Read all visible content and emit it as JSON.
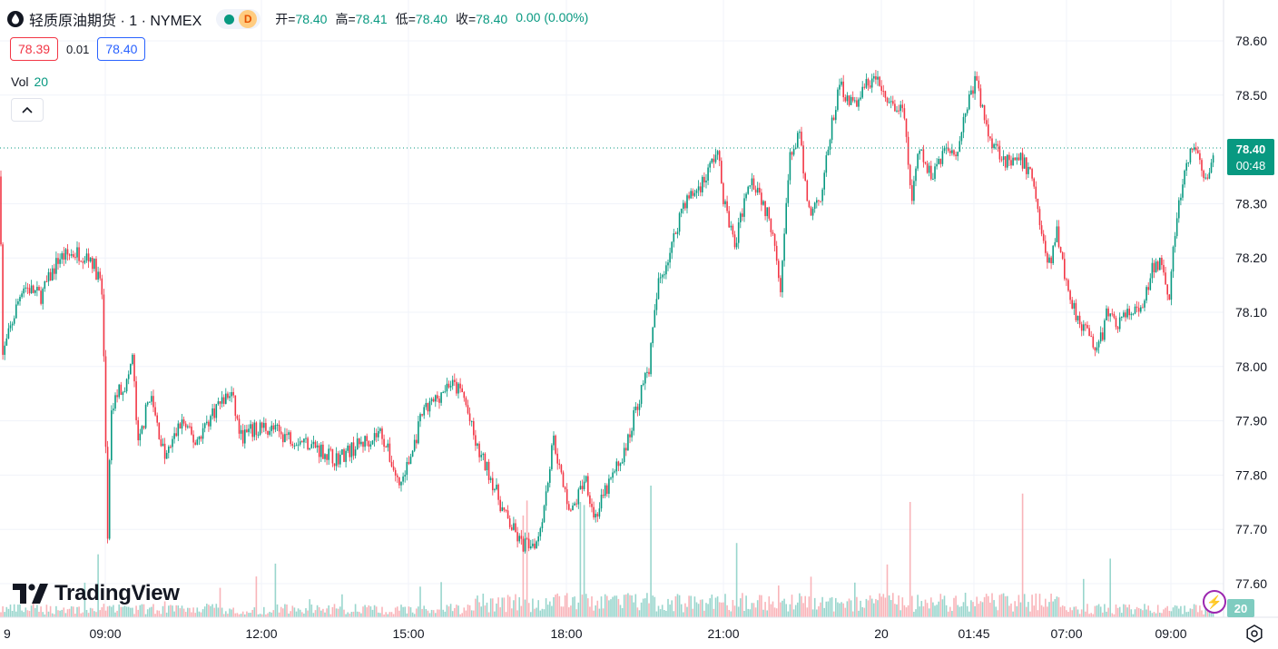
{
  "header": {
    "symbol_title": "轻质原油期货 · 1 · NYMEX",
    "badge_letter": "D",
    "open_label": "开=",
    "open_value": "78.40",
    "high_label": "高=",
    "high_value": "78.41",
    "low_label": "低=",
    "low_value": "78.40",
    "close_label": "收=",
    "close_value": "78.40",
    "change_value": "0.00 (0.00%)"
  },
  "quote": {
    "sell": "78.39",
    "spread": "0.01",
    "buy": "78.40"
  },
  "volume": {
    "label": "Vol",
    "value": "20"
  },
  "brand": {
    "name": "TradingView"
  },
  "colors": {
    "up": "#089981",
    "down": "#f23645",
    "up_vol": "#7fccc0",
    "down_vol": "#f7a1a8",
    "grid": "#f0f3fa"
  },
  "icons": [
    "oil-drop-icon",
    "chevron-up-icon",
    "tradingview-logo-icon",
    "lightning-icon",
    "settings-icon"
  ],
  "chart_data": {
    "type": "candlestick",
    "y_ticks": [
      "78.60",
      "78.50",
      "78.30",
      "78.20",
      "78.10",
      "78.00",
      "77.90",
      "77.80",
      "77.70",
      "77.60"
    ],
    "x_ticks": [
      "9",
      "09:00",
      "12:00",
      "15:00",
      "18:00",
      "21:00",
      "20",
      "01:45",
      "07:00",
      "09:00"
    ],
    "last_price": "78.40",
    "countdown": "00:48",
    "last_volume": "20",
    "ylim": [
      77.55,
      78.63
    ],
    "price_path": [
      [
        0,
        78.35
      ],
      [
        3,
        78.02
      ],
      [
        25,
        78.15
      ],
      [
        45,
        78.13
      ],
      [
        65,
        78.2
      ],
      [
        85,
        78.21
      ],
      [
        100,
        78.2
      ],
      [
        112,
        78.15
      ],
      [
        116,
        77.92
      ],
      [
        118,
        77.65
      ],
      [
        122,
        77.9
      ],
      [
        128,
        77.95
      ],
      [
        140,
        77.97
      ],
      [
        146,
        78.02
      ],
      [
        152,
        77.85
      ],
      [
        165,
        77.95
      ],
      [
        182,
        77.83
      ],
      [
        200,
        77.9
      ],
      [
        215,
        77.86
      ],
      [
        240,
        77.93
      ],
      [
        255,
        77.95
      ],
      [
        265,
        77.87
      ],
      [
        290,
        77.89
      ],
      [
        320,
        77.87
      ],
      [
        340,
        77.86
      ],
      [
        370,
        77.83
      ],
      [
        390,
        77.85
      ],
      [
        420,
        77.88
      ],
      [
        440,
        77.78
      ],
      [
        452,
        77.83
      ],
      [
        465,
        77.91
      ],
      [
        480,
        77.94
      ],
      [
        495,
        77.97
      ],
      [
        510,
        77.95
      ],
      [
        525,
        77.85
      ],
      [
        540,
        77.8
      ],
      [
        555,
        77.73
      ],
      [
        575,
        77.67
      ],
      [
        592,
        77.68
      ],
      [
        600,
        77.75
      ],
      [
        610,
        77.87
      ],
      [
        620,
        77.78
      ],
      [
        630,
        77.73
      ],
      [
        645,
        77.8
      ],
      [
        655,
        77.72
      ],
      [
        670,
        77.78
      ],
      [
        690,
        77.85
      ],
      [
        700,
        77.92
      ],
      [
        715,
        78.0
      ],
      [
        725,
        78.15
      ],
      [
        740,
        78.22
      ],
      [
        752,
        78.3
      ],
      [
        765,
        78.32
      ],
      [
        778,
        78.35
      ],
      [
        790,
        78.4
      ],
      [
        798,
        78.3
      ],
      [
        810,
        78.22
      ],
      [
        825,
        78.35
      ],
      [
        835,
        78.33
      ],
      [
        845,
        78.28
      ],
      [
        852,
        78.25
      ],
      [
        860,
        78.15
      ],
      [
        870,
        78.38
      ],
      [
        880,
        78.43
      ],
      [
        892,
        78.28
      ],
      [
        905,
        78.32
      ],
      [
        915,
        78.43
      ],
      [
        925,
        78.52
      ],
      [
        940,
        78.48
      ],
      [
        955,
        78.52
      ],
      [
        965,
        78.53
      ],
      [
        980,
        78.48
      ],
      [
        995,
        78.47
      ],
      [
        1005,
        78.3
      ],
      [
        1012,
        78.4
      ],
      [
        1025,
        78.35
      ],
      [
        1040,
        78.4
      ],
      [
        1055,
        78.4
      ],
      [
        1065,
        78.48
      ],
      [
        1075,
        78.53
      ],
      [
        1088,
        78.43
      ],
      [
        1100,
        78.4
      ],
      [
        1112,
        78.37
      ],
      [
        1125,
        78.38
      ],
      [
        1138,
        78.35
      ],
      [
        1145,
        78.27
      ],
      [
        1155,
        78.18
      ],
      [
        1165,
        78.25
      ],
      [
        1175,
        78.15
      ],
      [
        1185,
        78.1
      ],
      [
        1195,
        78.07
      ],
      [
        1210,
        78.03
      ],
      [
        1220,
        78.1
      ],
      [
        1232,
        78.08
      ],
      [
        1245,
        78.1
      ],
      [
        1258,
        78.1
      ],
      [
        1270,
        78.18
      ],
      [
        1280,
        78.2
      ],
      [
        1288,
        78.13
      ],
      [
        1295,
        78.25
      ],
      [
        1302,
        78.33
      ],
      [
        1315,
        78.41
      ],
      [
        1325,
        78.36
      ],
      [
        1332,
        78.34
      ],
      [
        1338,
        78.4
      ]
    ]
  }
}
